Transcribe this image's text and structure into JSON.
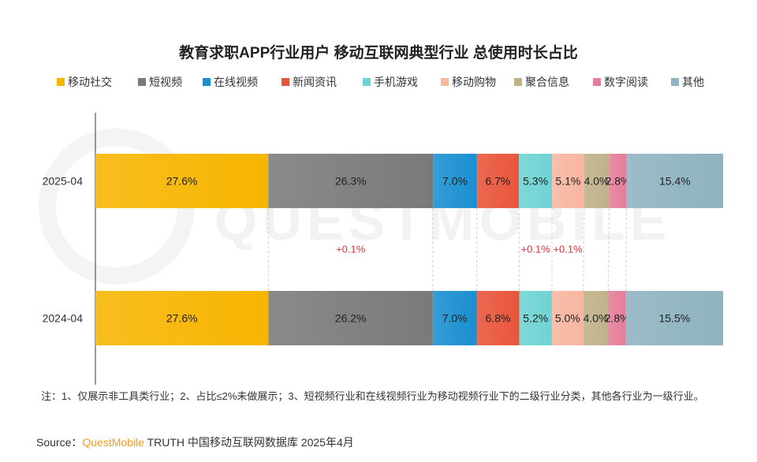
{
  "chart_data": {
    "type": "bar",
    "orientation": "horizontal",
    "stacked": true,
    "title": "教育求职APP行业用户 移动互联网典型行业 总使用时长占比",
    "categories": [
      "2025-04",
      "2024-04"
    ],
    "series": [
      {
        "name": "移动社交",
        "color": "#f7b500",
        "values": [
          27.6,
          27.6
        ],
        "labels": [
          "27.6%",
          "27.6%"
        ]
      },
      {
        "name": "短视频",
        "color": "#7a7a7a",
        "values": [
          26.3,
          26.2
        ],
        "labels": [
          "26.3%",
          "26.2%"
        ]
      },
      {
        "name": "在线视频",
        "color": "#1a8fd0",
        "values": [
          7.0,
          7.0
        ],
        "labels": [
          "7.0%",
          "7.0%"
        ]
      },
      {
        "name": "新闻资讯",
        "color": "#e9553a",
        "values": [
          6.7,
          6.8
        ],
        "labels": [
          "6.7%",
          "6.8%"
        ]
      },
      {
        "name": "手机游戏",
        "color": "#6fd3d3",
        "values": [
          5.3,
          5.2
        ],
        "labels": [
          "5.3%",
          "5.2%"
        ]
      },
      {
        "name": "移动购物",
        "color": "#f8b5a0",
        "values": [
          5.1,
          5.0
        ],
        "labels": [
          "5.1%",
          "5.0%"
        ]
      },
      {
        "name": "聚合信息",
        "color": "#bfb18a",
        "values": [
          4.0,
          4.0
        ],
        "labels": [
          "4.0%",
          "4.0%"
        ]
      },
      {
        "name": "数字阅读",
        "color": "#e57d9b",
        "values": [
          2.8,
          2.8
        ],
        "labels": [
          "2.8%",
          "2.8%"
        ]
      },
      {
        "name": "其他",
        "color": "#8fb3bf",
        "values": [
          15.4,
          15.5
        ],
        "labels": [
          "15.4%",
          "15.5%"
        ]
      }
    ],
    "changes": [
      {
        "series": "短视频",
        "label": "+0.1%"
      },
      {
        "series": "手机游戏",
        "label": "+0.1%"
      },
      {
        "series": "移动购物",
        "label": "+0.1%"
      }
    ],
    "legend_position": "top",
    "grid": false
  },
  "watermark": "QUESTMOBILE",
  "note": "注：1、仅展示非工具类行业；2、占比≤2%未做展示；3、短视频行业和在线视频行业为移动视频行业下的二级行业分类，其他各行业为一级行业。",
  "source": {
    "prefix": "Source：",
    "brand": "QuestMobile",
    "text": " TRUTH 中国移动互联网数据库 2025年4月"
  }
}
